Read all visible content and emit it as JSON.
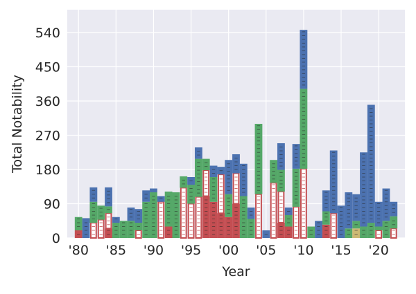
{
  "chart_data": {
    "type": "bar",
    "stacked": true,
    "xlabel": "Year",
    "ylabel": "Total Notability",
    "ylim": [
      0,
      600
    ],
    "xlim": [
      1978.5,
      2023.5
    ],
    "grid": true,
    "colors": {
      "background": "#EAEAF2",
      "grid": "#FFFFFF",
      "blue": "#4C72B0",
      "green": "#55A868",
      "red": "#C44E52",
      "red_outline_fill": "#FFFFFF",
      "yellow": "#CCB974"
    },
    "yticks": [
      {
        "value": 0,
        "label": "0"
      },
      {
        "value": 90,
        "label": "90"
      },
      {
        "value": 180,
        "label": "180"
      },
      {
        "value": 270,
        "label": "270"
      },
      {
        "value": 360,
        "label": "360"
      },
      {
        "value": 450,
        "label": "450"
      },
      {
        "value": 540,
        "label": "540"
      }
    ],
    "xticks": [
      {
        "value": 1980,
        "label": "'80"
      },
      {
        "value": 1985,
        "label": "'85"
      },
      {
        "value": 1990,
        "label": "'90"
      },
      {
        "value": 1995,
        "label": "'95"
      },
      {
        "value": 2000,
        "label": "'00"
      },
      {
        "value": 2005,
        "label": "'05"
      },
      {
        "value": 2010,
        "label": "'10"
      },
      {
        "value": 2015,
        "label": "'15"
      },
      {
        "value": 2020,
        "label": "'20"
      }
    ],
    "bars": [
      {
        "year": 1980,
        "segments": [
          {
            "color": "red",
            "value": 20
          },
          {
            "color": "green",
            "value": 35
          }
        ]
      },
      {
        "year": 1981,
        "segments": [
          {
            "color": "blue",
            "value": 52
          }
        ]
      },
      {
        "year": 1982,
        "segments": [
          {
            "color": "red_outline",
            "value": 40
          },
          {
            "color": "green",
            "value": 55
          },
          {
            "color": "blue",
            "value": 38
          }
        ]
      },
      {
        "year": 1983,
        "segments": [
          {
            "color": "red_outline",
            "value": 48
          },
          {
            "color": "green",
            "value": 37
          }
        ]
      },
      {
        "year": 1984,
        "segments": [
          {
            "color": "red",
            "value": 25
          },
          {
            "color": "red_outline",
            "value": 40
          },
          {
            "color": "green",
            "value": 18
          },
          {
            "color": "blue",
            "value": 50
          }
        ]
      },
      {
        "year": 1985,
        "segments": [
          {
            "color": "green",
            "value": 40
          },
          {
            "color": "blue",
            "value": 15
          }
        ]
      },
      {
        "year": 1986,
        "segments": [
          {
            "color": "green",
            "value": 45
          }
        ]
      },
      {
        "year": 1987,
        "segments": [
          {
            "color": "green",
            "value": 45
          },
          {
            "color": "blue",
            "value": 35
          }
        ]
      },
      {
        "year": 1988,
        "segments": [
          {
            "color": "red_outline",
            "value": 20
          },
          {
            "color": "green",
            "value": 20
          },
          {
            "color": "blue",
            "value": 36
          }
        ]
      },
      {
        "year": 1989,
        "segments": [
          {
            "color": "green",
            "value": 95
          },
          {
            "color": "blue",
            "value": 30
          }
        ]
      },
      {
        "year": 1990,
        "segments": [
          {
            "color": "green",
            "value": 120
          },
          {
            "color": "blue",
            "value": 10
          }
        ]
      },
      {
        "year": 1991,
        "segments": [
          {
            "color": "red_outline",
            "value": 95
          },
          {
            "color": "blue",
            "value": 15
          }
        ]
      },
      {
        "year": 1992,
        "segments": [
          {
            "color": "red",
            "value": 30
          },
          {
            "color": "green",
            "value": 92
          }
        ]
      },
      {
        "year": 1993,
        "segments": [
          {
            "color": "green",
            "value": 120
          }
        ]
      },
      {
        "year": 1994,
        "segments": [
          {
            "color": "red_outline",
            "value": 132
          },
          {
            "color": "green",
            "value": 30
          }
        ]
      },
      {
        "year": 1995,
        "segments": [
          {
            "color": "red_outline",
            "value": 90
          },
          {
            "color": "green",
            "value": 50
          },
          {
            "color": "blue",
            "value": 20
          }
        ]
      },
      {
        "year": 1996,
        "segments": [
          {
            "color": "red_outline",
            "value": 108
          },
          {
            "color": "green",
            "value": 100
          },
          {
            "color": "blue",
            "value": 30
          }
        ]
      },
      {
        "year": 1997,
        "segments": [
          {
            "color": "red",
            "value": 110
          },
          {
            "color": "red_outline",
            "value": 68
          },
          {
            "color": "green",
            "value": 30
          }
        ]
      },
      {
        "year": 1998,
        "segments": [
          {
            "color": "red",
            "value": 95
          },
          {
            "color": "green",
            "value": 65
          },
          {
            "color": "blue",
            "value": 30
          }
        ]
      },
      {
        "year": 1999,
        "segments": [
          {
            "color": "red",
            "value": 65
          },
          {
            "color": "red_outline",
            "value": 102
          },
          {
            "color": "blue",
            "value": 20
          }
        ]
      },
      {
        "year": 2000,
        "segments": [
          {
            "color": "red",
            "value": 55
          },
          {
            "color": "green",
            "value": 60
          },
          {
            "color": "blue",
            "value": 90
          }
        ]
      },
      {
        "year": 2001,
        "segments": [
          {
            "color": "red",
            "value": 90
          },
          {
            "color": "red_outline",
            "value": 80
          },
          {
            "color": "blue",
            "value": 50
          }
        ]
      },
      {
        "year": 2002,
        "segments": [
          {
            "color": "green",
            "value": 110
          },
          {
            "color": "blue",
            "value": 85
          }
        ]
      },
      {
        "year": 2003,
        "segments": [
          {
            "color": "green",
            "value": 50
          },
          {
            "color": "blue",
            "value": 30
          }
        ]
      },
      {
        "year": 2004,
        "segments": [
          {
            "color": "red_outline",
            "value": 115
          },
          {
            "color": "green",
            "value": 185
          }
        ]
      },
      {
        "year": 2005,
        "segments": [
          {
            "color": "blue",
            "value": 20
          }
        ]
      },
      {
        "year": 2006,
        "segments": [
          {
            "color": "red_outline",
            "value": 145
          },
          {
            "color": "green",
            "value": 60
          }
        ]
      },
      {
        "year": 2007,
        "segments": [
          {
            "color": "red",
            "value": 40
          },
          {
            "color": "red_outline",
            "value": 82
          },
          {
            "color": "green",
            "value": 57
          },
          {
            "color": "blue",
            "value": 70
          }
        ]
      },
      {
        "year": 2008,
        "segments": [
          {
            "color": "red",
            "value": 30
          },
          {
            "color": "green",
            "value": 30
          },
          {
            "color": "blue",
            "value": 20
          }
        ]
      },
      {
        "year": 2009,
        "segments": [
          {
            "color": "red_outline",
            "value": 82
          },
          {
            "color": "green",
            "value": 100
          },
          {
            "color": "blue",
            "value": 65
          }
        ]
      },
      {
        "year": 2010,
        "segments": [
          {
            "color": "red_outline",
            "value": 182
          },
          {
            "color": "green",
            "value": 210
          },
          {
            "color": "blue",
            "value": 155
          }
        ]
      },
      {
        "year": 2011,
        "segments": [
          {
            "color": "green",
            "value": 30
          }
        ]
      },
      {
        "year": 2012,
        "segments": [
          {
            "color": "blue",
            "value": 45
          }
        ]
      },
      {
        "year": 2013,
        "segments": [
          {
            "color": "red",
            "value": 35
          },
          {
            "color": "green",
            "value": 35
          },
          {
            "color": "blue",
            "value": 55
          }
        ]
      },
      {
        "year": 2014,
        "segments": [
          {
            "color": "red_outline",
            "value": 65
          },
          {
            "color": "blue",
            "value": 165
          }
        ]
      },
      {
        "year": 2015,
        "segments": [
          {
            "color": "blue",
            "value": 85
          }
        ]
      },
      {
        "year": 2016,
        "segments": [
          {
            "color": "green",
            "value": 25
          },
          {
            "color": "blue",
            "value": 95
          }
        ]
      },
      {
        "year": 2017,
        "segments": [
          {
            "color": "yellow",
            "value": 25
          },
          {
            "color": "green",
            "value": 20
          },
          {
            "color": "blue",
            "value": 70
          }
        ]
      },
      {
        "year": 2018,
        "segments": [
          {
            "color": "green",
            "value": 30
          },
          {
            "color": "blue",
            "value": 195
          }
        ]
      },
      {
        "year": 2019,
        "segments": [
          {
            "color": "green",
            "value": 40
          },
          {
            "color": "blue",
            "value": 310
          }
        ]
      },
      {
        "year": 2020,
        "segments": [
          {
            "color": "red_outline",
            "value": 20
          },
          {
            "color": "green",
            "value": 10
          },
          {
            "color": "blue",
            "value": 65
          }
        ]
      },
      {
        "year": 2021,
        "segments": [
          {
            "color": "green",
            "value": 45
          },
          {
            "color": "blue",
            "value": 85
          }
        ]
      },
      {
        "year": 2022,
        "segments": [
          {
            "color": "red_outline",
            "value": 25
          },
          {
            "color": "green",
            "value": 32
          },
          {
            "color": "blue",
            "value": 38
          }
        ]
      }
    ]
  }
}
